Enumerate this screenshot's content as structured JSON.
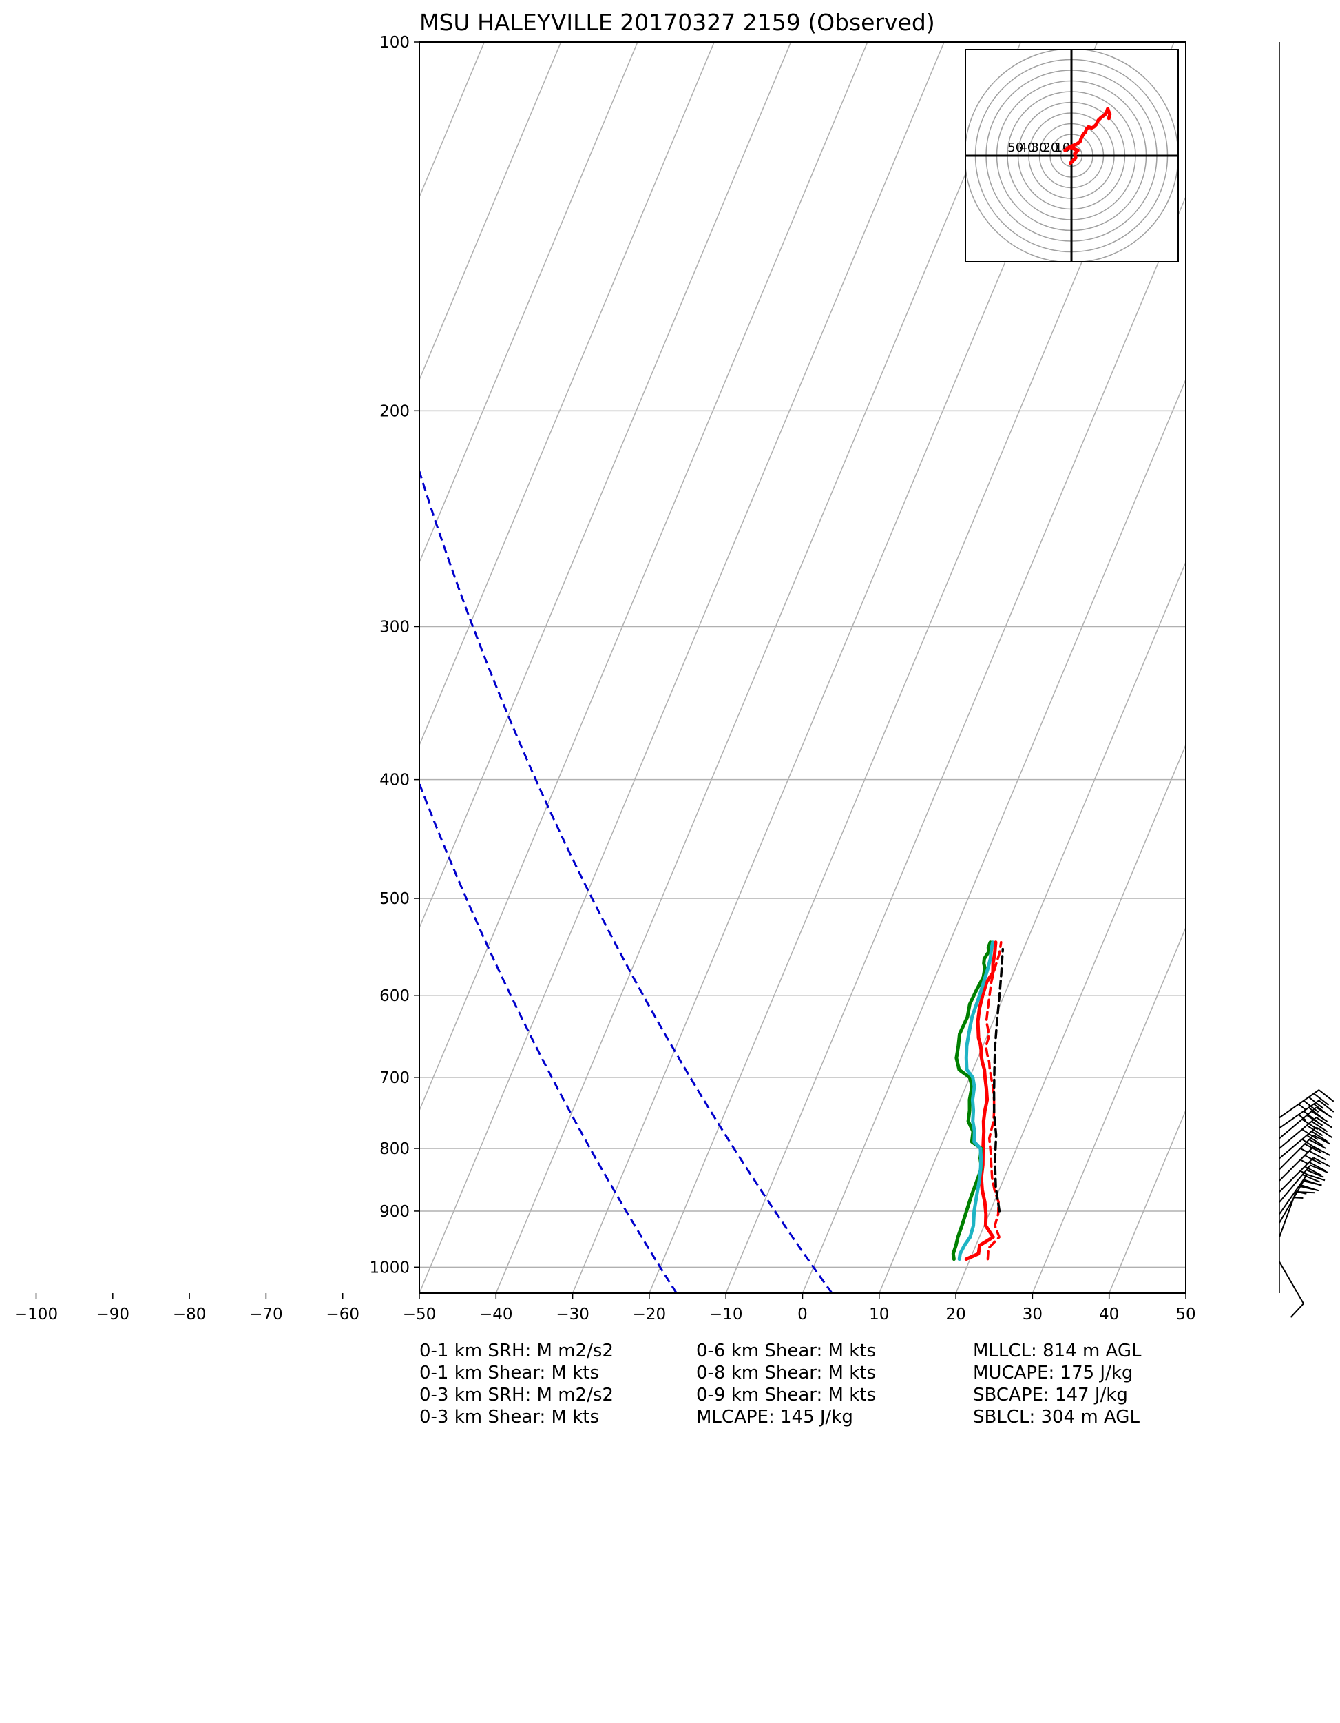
{
  "chart_data": {
    "type": "line",
    "title": "MSU HALEYVILLE 20170327 2159   (Observed)",
    "x_ticks": [
      -100,
      -90,
      -80,
      -70,
      -60,
      -50,
      -40,
      -30,
      -20,
      -10,
      0,
      10,
      20,
      30,
      40,
      50
    ],
    "p_ticks": [
      100,
      200,
      300,
      400,
      500,
      600,
      700,
      800,
      900,
      1000
    ],
    "xlim": [
      -50,
      50
    ],
    "ylim": [
      1050,
      100
    ],
    "y_scale": "log",
    "skew": true,
    "grid": true,
    "series": [
      {
        "key": "temperature",
        "color": "#ff0000",
        "style": "solid",
        "x": [
          19.5,
          20.8,
          20.5,
          21.8,
          20.2,
          19.6,
          18.8,
          17.8,
          17.0,
          16.5,
          15.8,
          15.3,
          14.8,
          14.2,
          13.8,
          13.5,
          12.8,
          12.0,
          11.5,
          10.8,
          10.3,
          10.0,
          9.6,
          9.0,
          8.5,
          8.0,
          7.5,
          7.2,
          7.0,
          7.3,
          6.8,
          6.5,
          6.2,
          6.0
        ],
        "p": [
          985,
          975,
          960,
          945,
          925,
          905,
          885,
          865,
          845,
          825,
          805,
          790,
          775,
          760,
          745,
          730,
          715,
          700,
          690,
          680,
          672,
          665,
          658,
          650,
          640,
          630,
          615,
          600,
          585,
          575,
          565,
          555,
          548,
          543
        ]
      },
      {
        "key": "dewpoint",
        "color": "#008000",
        "style": "solid",
        "x": [
          17.9,
          17.5,
          17.4,
          17.2,
          17.1,
          16.9,
          16.7,
          16.6,
          16.5,
          15.8,
          15.4,
          13.8,
          13.4,
          12.2,
          11.8,
          11.2,
          10.8,
          10.0,
          8.2,
          7.2,
          6.8,
          6.3,
          6.4,
          6.0,
          6.1,
          6.3,
          6.0,
          5.6,
          5.4,
          5.6,
          5.3,
          5.3
        ],
        "p": [
          985,
          975,
          960,
          945,
          925,
          900,
          875,
          850,
          830,
          815,
          800,
          790,
          775,
          760,
          745,
          730,
          712,
          700,
          690,
          675,
          660,
          645,
          625,
          610,
          595,
          580,
          570,
          565,
          560,
          553,
          548,
          543
        ]
      },
      {
        "key": "wetbulb",
        "color": "#1fb4c4",
        "style": "solid",
        "x": [
          18.6,
          18.4,
          18.5,
          18.8,
          18.6,
          17.9,
          17.4,
          16.9,
          16.4,
          15.9,
          15.3,
          14.1,
          13.6,
          12.8,
          12.3,
          11.6,
          11.1,
          10.4,
          9.2,
          8.5,
          7.9,
          7.5,
          7.0,
          6.8,
          6.6,
          6.4,
          6.2,
          5.8,
          5.6
        ],
        "p": [
          985,
          975,
          960,
          945,
          925,
          900,
          875,
          850,
          830,
          815,
          800,
          790,
          775,
          760,
          745,
          730,
          712,
          700,
          690,
          675,
          660,
          645,
          625,
          600,
          585,
          570,
          560,
          550,
          543
        ]
      },
      {
        "key": "virtual_temperature",
        "color": "#ff0000",
        "style": "dashed",
        "x": [
          22.3,
          21.8,
          22.6,
          21.4,
          21.2,
          20.6,
          19.4,
          18.4,
          17.6,
          16.8,
          15.9,
          15.5,
          15.0,
          14.4,
          13.7,
          12.8,
          12.2,
          11.7,
          11.0,
          10.4,
          10.3,
          9.8,
          9.1,
          8.6,
          8.1,
          7.6,
          7.3,
          7.1,
          6.7
        ],
        "p": [
          985,
          965,
          945,
          925,
          905,
          885,
          865,
          845,
          825,
          805,
          785,
          760,
          745,
          730,
          715,
          700,
          690,
          680,
          670,
          660,
          650,
          640,
          630,
          615,
          600,
          585,
          570,
          555,
          543
        ]
      },
      {
        "key": "parcel",
        "color": "#000000",
        "style": "dashed",
        "x": [
          21.2,
          19.4,
          17.9,
          16.6,
          15.2,
          14.0,
          12.8,
          11.6,
          10.5,
          9.4,
          8.4,
          7.3
        ],
        "p": [
          900,
          860,
          820,
          780,
          750,
          720,
          690,
          660,
          630,
          600,
          575,
          550
        ]
      },
      {
        "key": "dry_adiabat_guide",
        "color": "#0000cc",
        "style": "dashed",
        "x_surface": [
          -20,
          0
        ]
      }
    ],
    "hodograph": {
      "ring_labels": [
        "50",
        "40",
        "30",
        "20",
        "10"
      ],
      "color": "#ff0000",
      "u": [
        -0.5,
        0.5,
        2.0,
        1.5,
        3.0,
        0.5,
        -1.5,
        -3.0,
        -1.0,
        2.5,
        4.0,
        4.5,
        5.5,
        6.5,
        7.0,
        8.0,
        9.5,
        10.5,
        11.5,
        12.5,
        14.0,
        15.5,
        16.5,
        17.0,
        17.5,
        18.0,
        17.5
      ],
      "v": [
        -3.5,
        -2.5,
        -1.0,
        1.0,
        2.5,
        3.5,
        3.5,
        2.5,
        4.0,
        5.5,
        6.5,
        8.0,
        10.0,
        11.0,
        12.5,
        13.5,
        13.0,
        13.5,
        14.5,
        16.5,
        18.0,
        19.0,
        20.5,
        22.0,
        20.5,
        19.5,
        17.5
      ]
    },
    "wind_barbs": {
      "p": [
        990,
        945,
        920,
        905,
        885,
        868,
        850,
        832,
        815,
        800,
        785,
        770,
        755
      ],
      "speed_kt": [
        10,
        15,
        25,
        30,
        30,
        35,
        35,
        35,
        40,
        40,
        40,
        45,
        45
      ],
      "direction_deg": [
        330,
        200,
        210,
        215,
        220,
        225,
        225,
        225,
        230,
        230,
        230,
        235,
        235
      ]
    }
  },
  "stats": {
    "col1": [
      "0-1 km SRH: M m2/s2",
      "0-1 km Shear: M kts",
      "0-3 km SRH: M m2/s2",
      "0-3 km Shear: M kts"
    ],
    "col2": [
      "0-6 km Shear: M kts",
      "0-8 km Shear: M kts",
      "0-9 km Shear: M kts",
      "MLCAPE: 145 J/kg"
    ],
    "col3": [
      "MLLCL: 814 m AGL",
      "MUCAPE: 175 J/kg",
      "SBCAPE: 147 J/kg",
      "SBLCL: 304 m AGL"
    ]
  }
}
